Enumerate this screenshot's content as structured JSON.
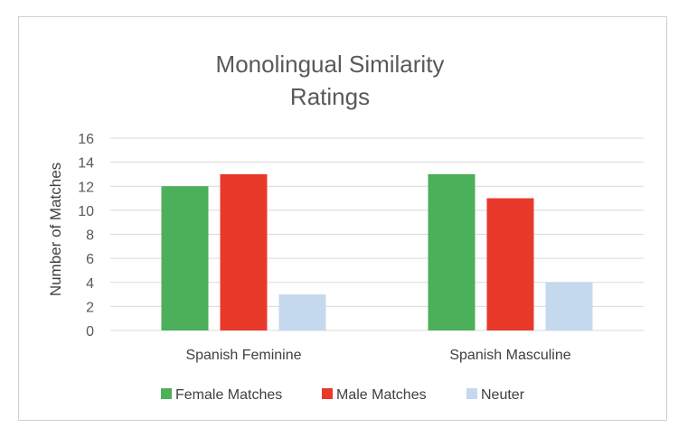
{
  "chart_data": {
    "type": "bar",
    "title_lines": [
      "Monolingual Similarity",
      "Ratings"
    ],
    "xlabel": "",
    "ylabel": "Number of Matches",
    "ylim": [
      0,
      16
    ],
    "yticks": [
      0,
      2,
      4,
      6,
      8,
      10,
      12,
      14,
      16
    ],
    "grid": true,
    "legend_position": "bottom",
    "categories": [
      "Spanish Feminine",
      "Spanish Masculine"
    ],
    "series": [
      {
        "name": "Female Matches",
        "color": "#4caf5a",
        "values": [
          12,
          13
        ]
      },
      {
        "name": "Male Matches",
        "color": "#e8392b",
        "values": [
          13,
          11
        ]
      },
      {
        "name": "Neuter",
        "color": "#c5d9ee",
        "values": [
          3,
          4
        ]
      }
    ]
  }
}
